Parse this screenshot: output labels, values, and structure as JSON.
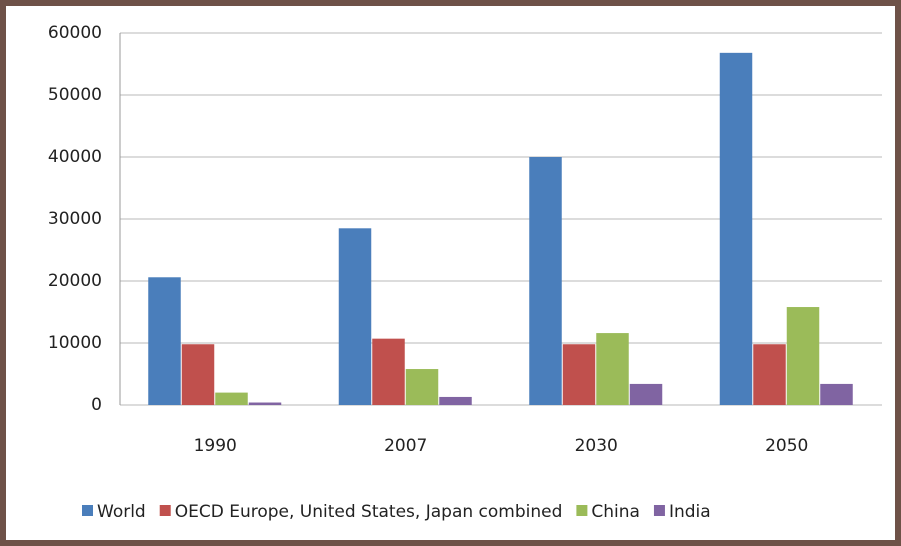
{
  "chart_data": {
    "type": "bar",
    "categories": [
      "1990",
      "2007",
      "2030",
      "2050"
    ],
    "series": [
      {
        "name": "World",
        "color": "#4a7ebb",
        "values": [
          20600,
          28500,
          40000,
          56800
        ]
      },
      {
        "name": "OECD Europe, United States, Japan combined",
        "color": "#c0504d",
        "values": [
          9800,
          10700,
          9800,
          9800
        ]
      },
      {
        "name": "China",
        "color": "#9bbb59",
        "values": [
          2000,
          5800,
          11600,
          15800
        ]
      },
      {
        "name": "India",
        "color": "#8064a2",
        "values": [
          400,
          1300,
          3400,
          3400
        ]
      }
    ],
    "ylim": [
      0,
      60000
    ],
    "yticks": [
      0,
      10000,
      20000,
      30000,
      40000,
      50000,
      60000
    ],
    "grid": true,
    "legend": "bottom"
  }
}
